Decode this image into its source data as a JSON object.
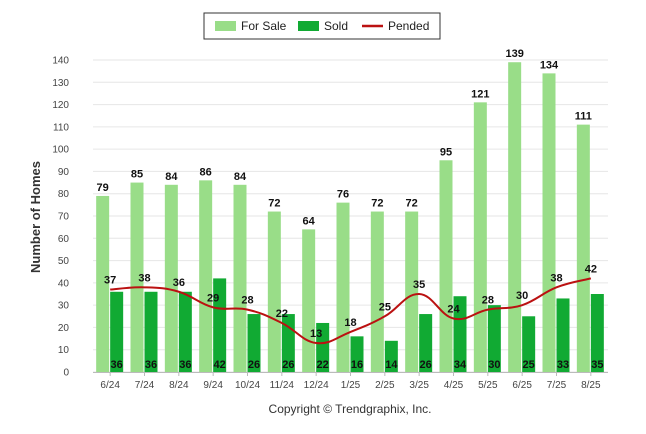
{
  "chart_data": {
    "type": "bar",
    "categories": [
      "6/24",
      "7/24",
      "8/24",
      "9/24",
      "10/24",
      "11/24",
      "12/24",
      "1/25",
      "2/25",
      "3/25",
      "4/25",
      "5/25",
      "6/25",
      "7/25",
      "8/25"
    ],
    "series": [
      {
        "name": "For Sale",
        "type": "bar",
        "color": "#99dd88",
        "values": [
          79,
          85,
          84,
          86,
          84,
          72,
          64,
          76,
          72,
          72,
          95,
          121,
          139,
          134,
          111
        ]
      },
      {
        "name": "Sold",
        "type": "bar",
        "color": "#11aa33",
        "values": [
          36,
          36,
          36,
          42,
          26,
          26,
          22,
          16,
          14,
          26,
          34,
          30,
          25,
          33,
          35
        ]
      },
      {
        "name": "Pended",
        "type": "line",
        "color": "#bb1111",
        "values": [
          37,
          38,
          36,
          29,
          28,
          22,
          13,
          18,
          25,
          35,
          24,
          28,
          30,
          38,
          42
        ]
      }
    ],
    "ylabel": "Number of Homes",
    "xlabel": "",
    "ylim": [
      0,
      140
    ],
    "ytick_step": 10,
    "grid": true,
    "legend_position": "top-center"
  },
  "footer": {
    "copyright": "Copyright © Trendgraphix, Inc."
  }
}
